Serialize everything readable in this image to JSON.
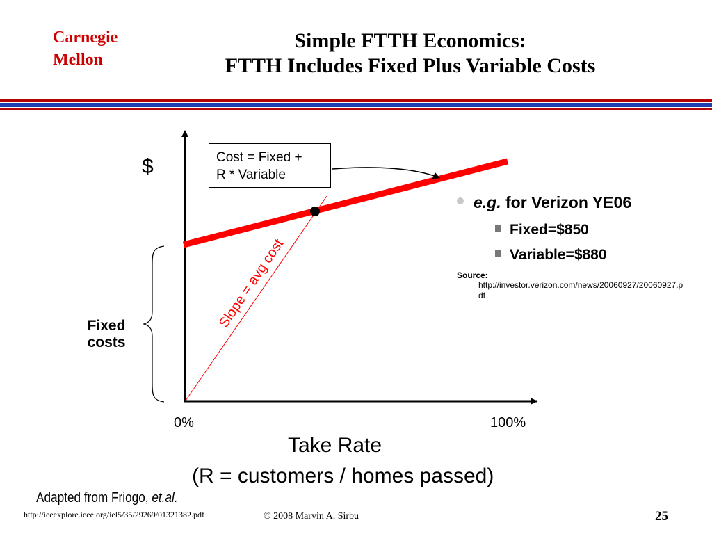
{
  "header": {
    "logo_line1": "Carnegie",
    "logo_line2": "Mellon",
    "title_line1": "Simple FTTH Economics:",
    "title_line2": "FTTH Includes Fixed Plus Variable Costs"
  },
  "diagram": {
    "y_axis_label": "$",
    "formula_line1": "Cost = Fixed +",
    "formula_line2": "R * Variable",
    "fixed_costs_line1": "Fixed",
    "fixed_costs_line2": "costs",
    "slope_label": "Slope = avg cost",
    "x_tick_min": "0%",
    "x_tick_max": "100%",
    "x_axis_title": "Take Rate",
    "x_axis_subtitle": "(R = customers / homes passed)",
    "colors": {
      "cost_line": "#ff0000",
      "avg_cost_line": "#ff0000",
      "axes": "#000000"
    }
  },
  "info": {
    "bullet_prefix": "e.g.",
    "bullet_rest": " for Verizon YE06",
    "fixed": "Fixed=$850",
    "variable": "Variable=$880",
    "source_label": "Source:",
    "source_url": "http://investor.verizon.com/news/20060927/20060927.pdf"
  },
  "footer": {
    "adapted_text": "Adapted from Friogo, ",
    "adapted_italic": "et.al.",
    "url": "http://ieeexplore.ieee.org/iel5/35/29269/01321382.pdf",
    "copyright": "©  2008  Marvin A. Sirbu",
    "page_number": "25"
  }
}
